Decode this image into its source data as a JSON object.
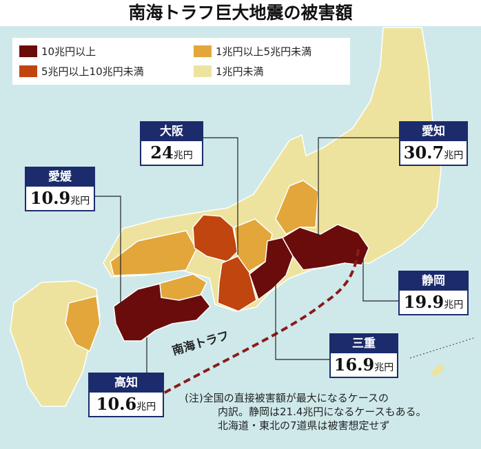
{
  "title": "南海トラフ巨大地震の被害額",
  "colors": {
    "background": "#cfe9ea",
    "over10": "#6b0c0c",
    "5to10": "#c0450f",
    "1to5": "#e2a63a",
    "under1": "#eee39e",
    "callout": "#1b2b6b",
    "trough": "#8b1a1a"
  },
  "legend": [
    {
      "label": "10兆円以上",
      "color": "#6b0c0c"
    },
    {
      "label": "5兆円以上10兆円未満",
      "color": "#c0450f"
    },
    {
      "label": "1兆円以上5兆円未満",
      "color": "#e2a63a"
    },
    {
      "label": "1兆円未満",
      "color": "#eee39e"
    }
  ],
  "callouts": [
    {
      "pref": "大阪",
      "value": "24",
      "unit": "兆円"
    },
    {
      "pref": "愛知",
      "value": "30.7",
      "unit": "兆円"
    },
    {
      "pref": "愛媛",
      "value": "10.9",
      "unit": "兆円"
    },
    {
      "pref": "静岡",
      "value": "19.9",
      "unit": "兆円"
    },
    {
      "pref": "三重",
      "value": "16.9",
      "unit": "兆円"
    },
    {
      "pref": "高知",
      "value": "10.6",
      "unit": "兆円"
    }
  ],
  "trough_label": "南海トラフ",
  "note": [
    "(注)全国の直接被害額が最大になるケースの",
    "内訳。静岡は21.4兆円になるケースもある。",
    "北海道・東北の7道県は被害想定せず"
  ]
}
